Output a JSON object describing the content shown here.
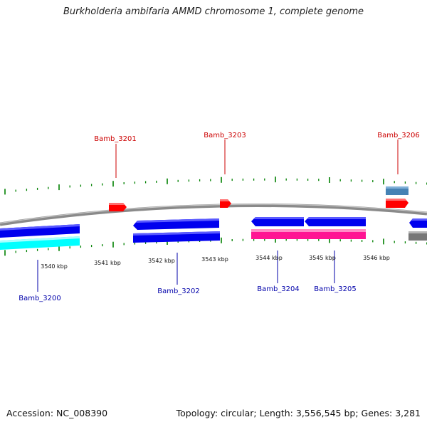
{
  "title": "Burkholderia ambifaria AMMD chromosome 1, complete genome",
  "footer": {
    "accession": "Accession: NC_008390",
    "topology": "Topology: circular; Length: 3,556,545 bp; Genes: 3,281"
  },
  "colors": {
    "backbone": "#888888",
    "forward_gene": "#ff0000",
    "reverse_gene": "#0000ee",
    "tick": "#008000",
    "rna_gene": "#ff1493",
    "cyan_track": "#00ffff",
    "gray_track": "#777777",
    "steel_track": "#4682b4",
    "label_forward": "#cc0000",
    "label_reverse": "#0000aa"
  },
  "kbp_labels": [
    "3540 kbp",
    "3541 kbp",
    "3542 kbp",
    "3543 kbp",
    "3544 kbp",
    "3545 kbp",
    "3546 kbp"
  ],
  "gene_labels": {
    "forward": [
      "Bamb_3201",
      "Bamb_3203",
      "Bamb_3206"
    ],
    "reverse": [
      "Bamb_3200",
      "Bamb_3202",
      "Bamb_3204",
      "Bamb_3205"
    ]
  }
}
